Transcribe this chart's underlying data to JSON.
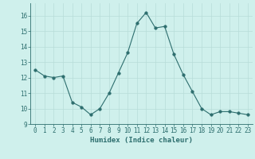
{
  "x": [
    0,
    1,
    2,
    3,
    4,
    5,
    6,
    7,
    8,
    9,
    10,
    11,
    12,
    13,
    14,
    15,
    16,
    17,
    18,
    19,
    20,
    21,
    22,
    23
  ],
  "y": [
    12.5,
    12.1,
    12.0,
    12.1,
    10.4,
    10.1,
    9.6,
    10.0,
    11.0,
    12.3,
    13.6,
    15.5,
    16.2,
    15.2,
    15.3,
    13.5,
    12.2,
    11.1,
    10.0,
    9.6,
    9.8,
    9.8,
    9.7,
    9.6
  ],
  "xlabel": "Humidex (Indice chaleur)",
  "xlim": [
    -0.5,
    23.5
  ],
  "ylim": [
    9.0,
    16.8
  ],
  "yticks": [
    9,
    10,
    11,
    12,
    13,
    14,
    15,
    16
  ],
  "xticks": [
    0,
    1,
    2,
    3,
    4,
    5,
    6,
    7,
    8,
    9,
    10,
    11,
    12,
    13,
    14,
    15,
    16,
    17,
    18,
    19,
    20,
    21,
    22,
    23
  ],
  "line_color": "#2d6e6e",
  "marker_size": 2.5,
  "bg_color": "#cff0ec",
  "grid_color": "#b8ddd8",
  "tick_fontsize": 5.5,
  "xlabel_fontsize": 6.5
}
